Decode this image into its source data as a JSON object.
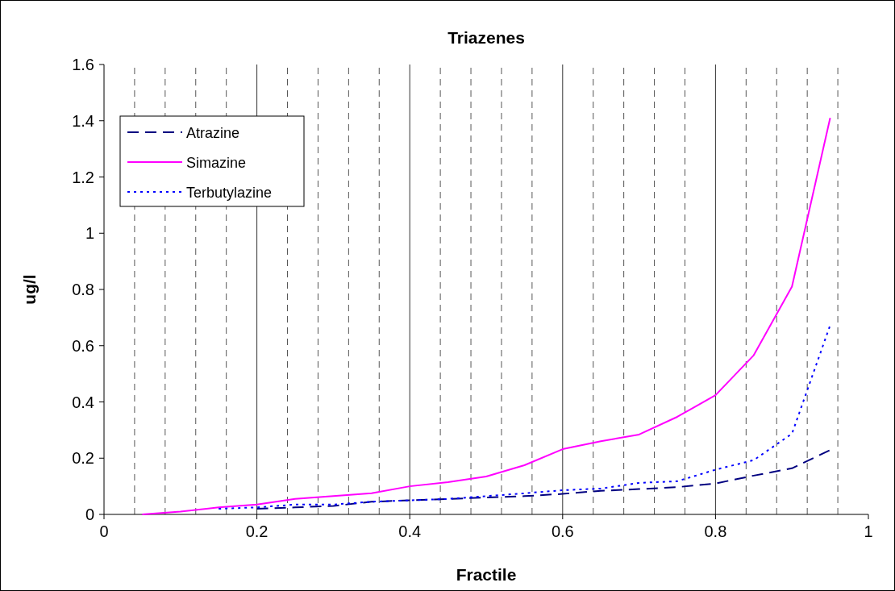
{
  "chart_data": {
    "type": "line",
    "title": "Triazenes",
    "xlabel": "Fractile",
    "ylabel": "ug/l",
    "xlim": [
      0,
      1
    ],
    "ylim": [
      0,
      1.6
    ],
    "xticks": [
      0,
      {
        "value": 0.04,
        "label": null
      },
      {
        "value": 0.08,
        "label": null
      },
      {
        "value": 0.12,
        "label": null
      },
      {
        "value": 0.16,
        "label": null
      },
      0.2,
      {
        "value": 0.24,
        "label": null
      },
      {
        "value": 0.28,
        "label": null
      },
      {
        "value": 0.32,
        "label": null
      },
      {
        "value": 0.36,
        "label": null
      },
      0.4,
      {
        "value": 0.44,
        "label": null
      },
      {
        "value": 0.48,
        "label": null
      },
      {
        "value": 0.52,
        "label": null
      },
      {
        "value": 0.56,
        "label": null
      },
      0.6,
      {
        "value": 0.64,
        "label": null
      },
      {
        "value": 0.68,
        "label": null
      },
      {
        "value": 0.72,
        "label": null
      },
      {
        "value": 0.76,
        "label": null
      },
      0.8,
      {
        "value": 0.84,
        "label": null
      },
      {
        "value": 0.88,
        "label": null
      },
      {
        "value": 0.92,
        "label": null
      },
      {
        "value": 0.96,
        "label": null
      },
      1
    ],
    "yticks": [
      0,
      0.2,
      0.4,
      0.6,
      0.8,
      1,
      1.2,
      1.4,
      1.6
    ],
    "grid": "x",
    "legend": "top left",
    "marker": "none",
    "series": [
      {
        "name": "Atrazine",
        "color": "#000080",
        "line_style": "dashed",
        "x": [
          0.2,
          0.25,
          0.3,
          0.35,
          0.4,
          0.45,
          0.5,
          0.55,
          0.6,
          0.65,
          0.7,
          0.75,
          0.8,
          0.85,
          0.9,
          0.95
        ],
        "values": [
          0.02,
          0.025,
          0.03,
          0.045,
          0.05,
          0.055,
          0.06,
          0.065,
          0.073,
          0.084,
          0.09,
          0.097,
          0.11,
          0.138,
          0.164,
          0.229
        ]
      },
      {
        "name": "Simazine",
        "color": "#ff00ff",
        "line_style": "solid",
        "x": [
          0.05,
          0.1,
          0.15,
          0.2,
          0.25,
          0.3,
          0.35,
          0.4,
          0.45,
          0.5,
          0.55,
          0.6,
          0.65,
          0.7,
          0.75,
          0.8,
          0.85,
          0.9,
          0.95
        ],
        "values": [
          0,
          0.01,
          0.025,
          0.035,
          0.055,
          0.065,
          0.075,
          0.1,
          0.115,
          0.135,
          0.175,
          0.232,
          0.26,
          0.284,
          0.347,
          0.424,
          0.566,
          0.81,
          1.41
        ]
      },
      {
        "name": "Terbutylazine",
        "color": "#0000ff",
        "line_style": "dotted",
        "x": [
          0.15,
          0.2,
          0.25,
          0.3,
          0.35,
          0.4,
          0.45,
          0.5,
          0.55,
          0.6,
          0.65,
          0.7,
          0.75,
          0.8,
          0.85,
          0.9,
          0.95
        ],
        "values": [
          0.02,
          0.025,
          0.035,
          0.035,
          0.045,
          0.05,
          0.055,
          0.065,
          0.075,
          0.086,
          0.092,
          0.112,
          0.118,
          0.159,
          0.193,
          0.287,
          0.673
        ]
      }
    ]
  }
}
